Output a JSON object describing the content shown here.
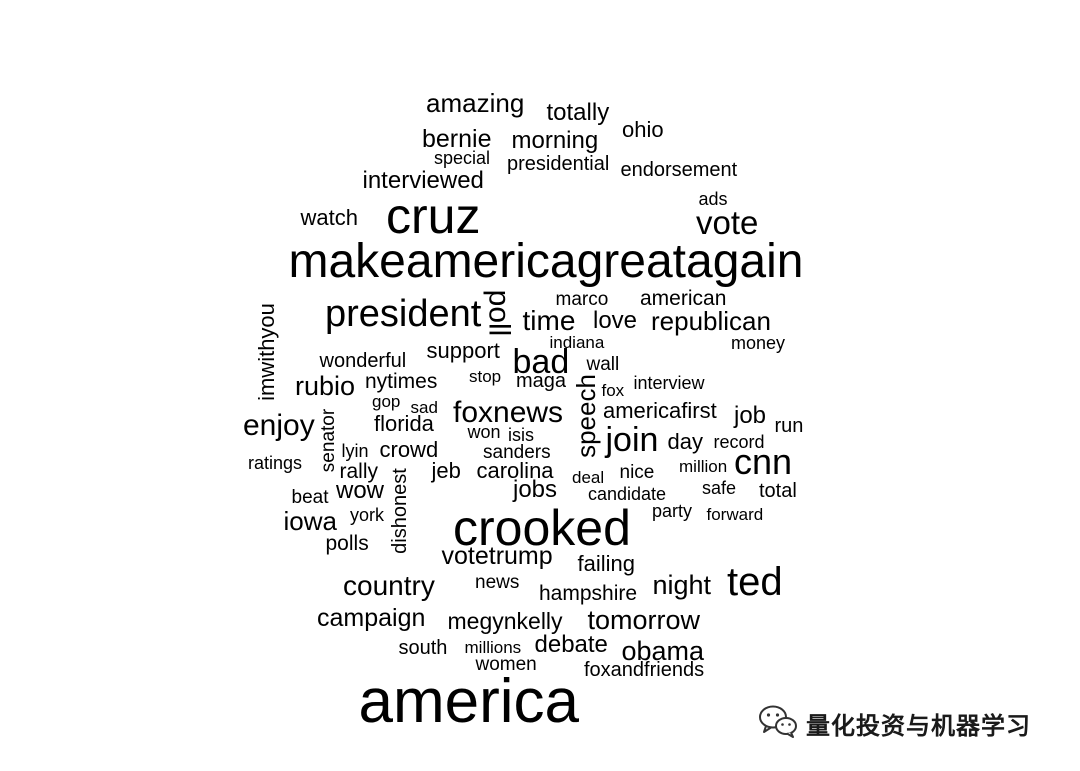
{
  "words": [
    {
      "text": "amazing",
      "size": 26,
      "rotate": 0
    },
    {
      "text": "totally",
      "size": 24,
      "rotate": 0
    },
    {
      "text": "ohio",
      "size": 22,
      "rotate": 0
    },
    {
      "text": "bernie",
      "size": 25,
      "rotate": 0
    },
    {
      "text": "morning",
      "size": 24,
      "rotate": 0
    },
    {
      "text": "special",
      "size": 18,
      "rotate": 0
    },
    {
      "text": "presidential",
      "size": 20,
      "rotate": 0
    },
    {
      "text": "endorsement",
      "size": 20,
      "rotate": 0
    },
    {
      "text": "interviewed",
      "size": 24,
      "rotate": 0
    },
    {
      "text": "ads",
      "size": 18,
      "rotate": 0
    },
    {
      "text": "watch",
      "size": 22,
      "rotate": 0
    },
    {
      "text": "cruz",
      "size": 50,
      "rotate": 0
    },
    {
      "text": "vote",
      "size": 33,
      "rotate": 0
    },
    {
      "text": "makeamericagreatagain",
      "size": 48,
      "rotate": 0
    },
    {
      "text": "president",
      "size": 38,
      "rotate": 0
    },
    {
      "text": "poll",
      "size": 30,
      "rotate": 90
    },
    {
      "text": "marco",
      "size": 19,
      "rotate": 0
    },
    {
      "text": "american",
      "size": 21,
      "rotate": 0
    },
    {
      "text": "time",
      "size": 28,
      "rotate": 0
    },
    {
      "text": "love",
      "size": 24,
      "rotate": 0
    },
    {
      "text": "republican",
      "size": 26,
      "rotate": 0
    },
    {
      "text": "imwithyou",
      "size": 22,
      "rotate": -90
    },
    {
      "text": "indiana",
      "size": 17,
      "rotate": 0
    },
    {
      "text": "money",
      "size": 18,
      "rotate": 0
    },
    {
      "text": "wonderful",
      "size": 20,
      "rotate": 0
    },
    {
      "text": "support",
      "size": 22,
      "rotate": 0
    },
    {
      "text": "bad",
      "size": 34,
      "rotate": 0
    },
    {
      "text": "wall",
      "size": 19,
      "rotate": 0
    },
    {
      "text": "rubio",
      "size": 27,
      "rotate": 0
    },
    {
      "text": "nytimes",
      "size": 21,
      "rotate": 0
    },
    {
      "text": "stop",
      "size": 17,
      "rotate": 0
    },
    {
      "text": "maga",
      "size": 20,
      "rotate": 0
    },
    {
      "text": "speech",
      "size": 26,
      "rotate": -90
    },
    {
      "text": "fox",
      "size": 17,
      "rotate": 0
    },
    {
      "text": "interview",
      "size": 18,
      "rotate": 0
    },
    {
      "text": "gop",
      "size": 17,
      "rotate": 0
    },
    {
      "text": "sad",
      "size": 17,
      "rotate": 0
    },
    {
      "text": "foxnews",
      "size": 30,
      "rotate": 0
    },
    {
      "text": "americafirst",
      "size": 22,
      "rotate": 0
    },
    {
      "text": "job",
      "size": 24,
      "rotate": 0
    },
    {
      "text": "run",
      "size": 20,
      "rotate": 0
    },
    {
      "text": "enjoy",
      "size": 30,
      "rotate": 0
    },
    {
      "text": "senator",
      "size": 19,
      "rotate": -90
    },
    {
      "text": "florida",
      "size": 22,
      "rotate": 0
    },
    {
      "text": "won",
      "size": 18,
      "rotate": 0
    },
    {
      "text": "isis",
      "size": 18,
      "rotate": 0
    },
    {
      "text": "join",
      "size": 34,
      "rotate": 0
    },
    {
      "text": "day",
      "size": 22,
      "rotate": 0
    },
    {
      "text": "record",
      "size": 18,
      "rotate": 0
    },
    {
      "text": "cnn",
      "size": 36,
      "rotate": 0
    },
    {
      "text": "lyin",
      "size": 18,
      "rotate": 0
    },
    {
      "text": "crowd",
      "size": 22,
      "rotate": 0
    },
    {
      "text": "sanders",
      "size": 19,
      "rotate": 0
    },
    {
      "text": "ratings",
      "size": 18,
      "rotate": 0
    },
    {
      "text": "rally",
      "size": 21,
      "rotate": 0
    },
    {
      "text": "dishonest",
      "size": 20,
      "rotate": -90
    },
    {
      "text": "jeb",
      "size": 22,
      "rotate": 0
    },
    {
      "text": "carolina",
      "size": 22,
      "rotate": 0
    },
    {
      "text": "deal",
      "size": 17,
      "rotate": 0
    },
    {
      "text": "nice",
      "size": 19,
      "rotate": 0
    },
    {
      "text": "million",
      "size": 17,
      "rotate": 0
    },
    {
      "text": "beat",
      "size": 19,
      "rotate": 0
    },
    {
      "text": "wow",
      "size": 24,
      "rotate": 0
    },
    {
      "text": "jobs",
      "size": 24,
      "rotate": 0
    },
    {
      "text": "candidate",
      "size": 18,
      "rotate": 0
    },
    {
      "text": "safe",
      "size": 18,
      "rotate": 0
    },
    {
      "text": "total",
      "size": 20,
      "rotate": 0
    },
    {
      "text": "iowa",
      "size": 26,
      "rotate": 0
    },
    {
      "text": "york",
      "size": 18,
      "rotate": 0
    },
    {
      "text": "crooked",
      "size": 50,
      "rotate": 0
    },
    {
      "text": "party",
      "size": 18,
      "rotate": 0
    },
    {
      "text": "forward",
      "size": 17,
      "rotate": 0
    },
    {
      "text": "polls",
      "size": 21,
      "rotate": 0
    },
    {
      "text": "votetrump",
      "size": 25,
      "rotate": 0
    },
    {
      "text": "failing",
      "size": 22,
      "rotate": 0
    },
    {
      "text": "ted",
      "size": 40,
      "rotate": 0
    },
    {
      "text": "country",
      "size": 28,
      "rotate": 0
    },
    {
      "text": "news",
      "size": 19,
      "rotate": 0
    },
    {
      "text": "night",
      "size": 27,
      "rotate": 0
    },
    {
      "text": "hampshire",
      "size": 21,
      "rotate": 0
    },
    {
      "text": "campaign",
      "size": 25,
      "rotate": 0
    },
    {
      "text": "megynkelly",
      "size": 23,
      "rotate": 0
    },
    {
      "text": "tomorrow",
      "size": 27,
      "rotate": 0
    },
    {
      "text": "south",
      "size": 20,
      "rotate": 0
    },
    {
      "text": "millions",
      "size": 17,
      "rotate": 0
    },
    {
      "text": "debate",
      "size": 24,
      "rotate": 0
    },
    {
      "text": "obama",
      "size": 27,
      "rotate": 0
    },
    {
      "text": "women",
      "size": 19,
      "rotate": 0
    },
    {
      "text": "foxandfriends",
      "size": 20,
      "rotate": 0
    },
    {
      "text": "america",
      "size": 62,
      "rotate": 0
    }
  ],
  "watermark": {
    "icon": "wechat-icon",
    "text": "量化投资与机器学习"
  }
}
